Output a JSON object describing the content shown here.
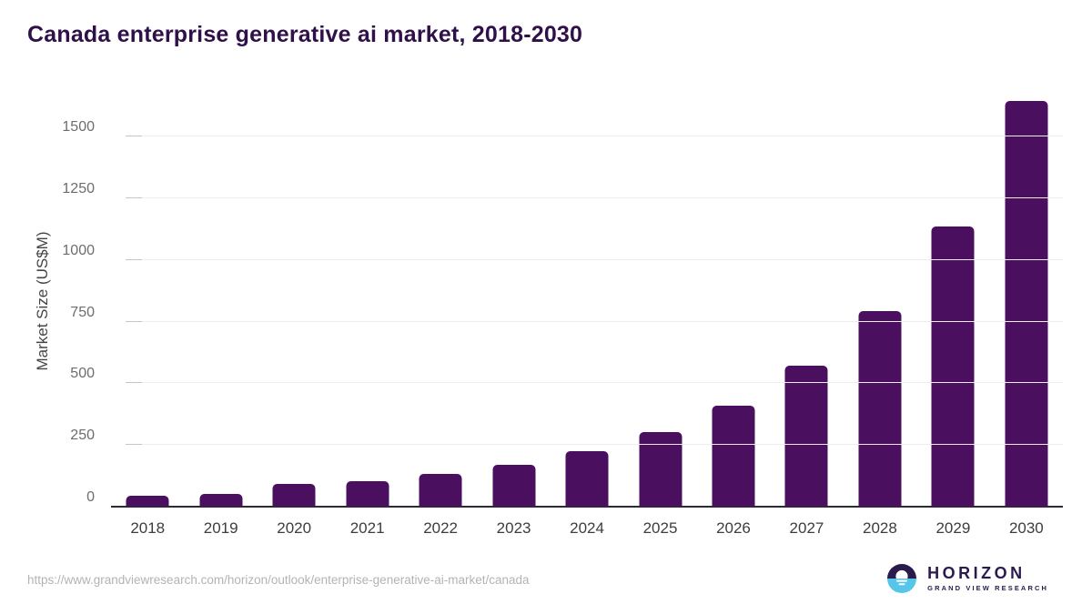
{
  "title": "Canada enterprise generative ai market, 2018-2030",
  "chart_data": {
    "type": "bar",
    "title": "Canada enterprise generative ai market, 2018-2030",
    "xlabel": "",
    "ylabel": "Market Size (US$M)",
    "categories": [
      "2018",
      "2019",
      "2020",
      "2021",
      "2022",
      "2023",
      "2024",
      "2025",
      "2026",
      "2027",
      "2028",
      "2029",
      "2030"
    ],
    "values": [
      45,
      52,
      93,
      103,
      131,
      170,
      226,
      303,
      409,
      570,
      793,
      1135,
      1645
    ],
    "yticks": [
      0,
      250,
      500,
      750,
      1000,
      1250,
      1500
    ],
    "ylim": [
      0,
      1666
    ],
    "grid": "horizontal",
    "legend": "none",
    "bar_color": "#4a105f"
  },
  "colors": {
    "title": "#2f1049",
    "bar": "#4a105f",
    "axis_title": "#454545",
    "ytick_label": "#6d6d6d",
    "xtick_label": "#3d3d3d",
    "gridline": "#ededed",
    "tickmark": "#c5c5c5",
    "baseline": "#2b2b33",
    "url": "#b3b3b3",
    "logo_dark": "#2b1b4d",
    "logo_blue": "#56c5ea"
  },
  "footer": {
    "source_url": "https://www.grandviewresearch.com/horizon/outlook/enterprise-generative-ai-market/canada",
    "logo": {
      "brand": "HORIZON",
      "sub_brand": "GRAND VIEW RESEARCH"
    }
  }
}
